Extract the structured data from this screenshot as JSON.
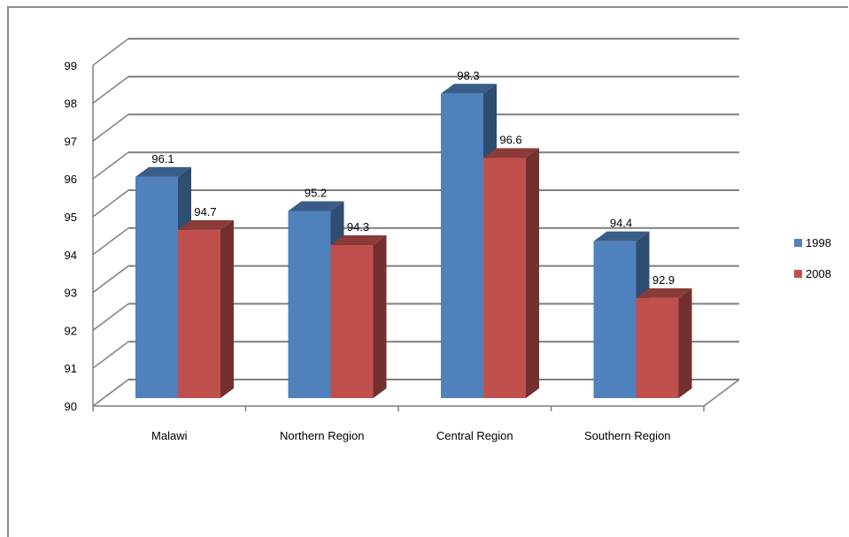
{
  "chart_data": {
    "type": "bar",
    "title": "",
    "xlabel": "",
    "ylabel": "",
    "categories": [
      "Malawi",
      "Northern Region",
      "Central Region",
      "Southern Region"
    ],
    "series": [
      {
        "name": "1998",
        "values": [
          96.1,
          95.2,
          98.3,
          94.4
        ],
        "color": "#4f81bd"
      },
      {
        "name": "2008",
        "values": [
          94.7,
          94.3,
          96.6,
          92.9
        ],
        "color": "#c0504d"
      }
    ],
    "yticks": [
      "90",
      "91",
      "92",
      "93",
      "94",
      "95",
      "96",
      "97",
      "98",
      "99"
    ],
    "ylim": [
      90,
      99
    ],
    "grid": true,
    "three_d": true,
    "legend_position": "right"
  }
}
